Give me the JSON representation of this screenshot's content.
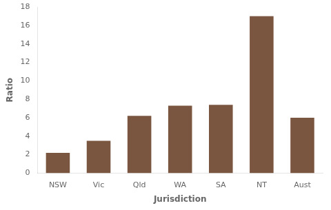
{
  "chart_data": {
    "type": "bar",
    "categories": [
      "NSW",
      "Vic",
      "Qld",
      "WA",
      "SA",
      "NT",
      "Aust"
    ],
    "values": [
      2.2,
      3.5,
      6.2,
      7.3,
      7.4,
      17.0,
      6.0
    ],
    "color": "#7a5540",
    "xlabel": "Jurisdiction",
    "ylabel": "Ratio",
    "ylim": [
      0,
      18
    ],
    "yticks": [
      0,
      2,
      4,
      6,
      8,
      10,
      12,
      14,
      16,
      18
    ],
    "grid": false
  }
}
